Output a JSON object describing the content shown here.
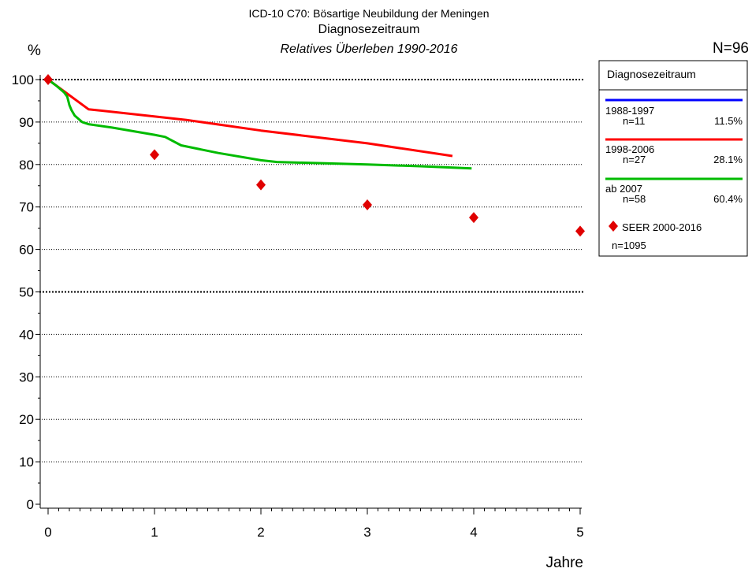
{
  "header": {
    "title": "ICD-10 C70: Bösartige Neubildung der Meningen",
    "subtitle": "Diagnosezeitraum",
    "subtitle2": "Relatives Überleben 1990-2016",
    "n_total": "N=96"
  },
  "chart_data": {
    "type": "line",
    "title": "ICD-10 C70: Bösartige Neubildung der Meningen",
    "subtitle": "Diagnosezeitraum",
    "xlabel": "Jahre",
    "ylabel": "%",
    "xlim": [
      0,
      5
    ],
    "ylim": [
      0,
      100
    ],
    "x_ticks": [
      0,
      1,
      2,
      3,
      4,
      5
    ],
    "y_ticks": [
      0,
      10,
      20,
      30,
      40,
      50,
      60,
      70,
      80,
      90,
      100
    ],
    "grid": "horizontal dotted",
    "legend_position": "right",
    "series": [
      {
        "name": "1988-1997",
        "n_label": "n=11",
        "pct": "11.5%",
        "color": "#0000ff",
        "points": []
      },
      {
        "name": "1998-2006",
        "n_label": "n=27",
        "pct": "28.1%",
        "color": "#ff0000",
        "points": [
          [
            0,
            100
          ],
          [
            0.38,
            93
          ],
          [
            1.3,
            90.5
          ],
          [
            2.0,
            88
          ],
          [
            3.0,
            85
          ],
          [
            3.8,
            82
          ]
        ]
      },
      {
        "name": "ab 2007",
        "n_label": "n=58",
        "pct": "60.4%",
        "color": "#00bb00",
        "points": [
          [
            0,
            100
          ],
          [
            0.08,
            98.5
          ],
          [
            0.15,
            97
          ],
          [
            0.18,
            96
          ],
          [
            0.2,
            94
          ],
          [
            0.22,
            92.8
          ],
          [
            0.25,
            91.5
          ],
          [
            0.32,
            90
          ],
          [
            0.38,
            89.5
          ],
          [
            0.6,
            88.7
          ],
          [
            1.0,
            87
          ],
          [
            1.1,
            86.5
          ],
          [
            1.25,
            84.5
          ],
          [
            1.6,
            82.7
          ],
          [
            2.0,
            81
          ],
          [
            2.15,
            80.6
          ],
          [
            3.0,
            80
          ],
          [
            3.5,
            79.6
          ],
          [
            3.98,
            79.1
          ]
        ]
      }
    ],
    "reference": {
      "name": "SEER 2000-2016",
      "n_label": "n=1095",
      "color": "#e00000",
      "points": [
        [
          0,
          100
        ],
        [
          1,
          82.3
        ],
        [
          2,
          75.2
        ],
        [
          3,
          70.5
        ],
        [
          4,
          67.5
        ],
        [
          5,
          64.3
        ]
      ]
    }
  }
}
